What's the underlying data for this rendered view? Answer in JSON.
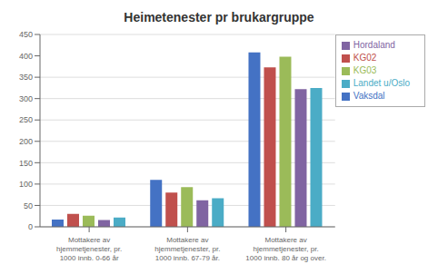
{
  "chart_data": {
    "type": "bar",
    "title": "Heimetenester pr brukargruppe",
    "categories": [
      "Mottakere av\nhjemmetjenester, pr.\n1000 innb. 0-66 år",
      "Mottakere av\nhjemmetjenester, pr.\n1000 innb. 67-79 år.",
      "Mottakere av\nhjemmetjenester, pr.\n1000 innb. 80 år og over."
    ],
    "series": [
      {
        "name": "Vaksdal",
        "color": "#4472C4",
        "values": [
          17,
          110,
          408
        ]
      },
      {
        "name": "KG02",
        "color": "#C0504D",
        "values": [
          30,
          80,
          373
        ]
      },
      {
        "name": "KG03",
        "color": "#9BBB59",
        "values": [
          26,
          93,
          398
        ]
      },
      {
        "name": "Hordaland",
        "color": "#8064A2",
        "values": [
          16,
          62,
          322
        ]
      },
      {
        "name": "Landet u/Oslo",
        "color": "#4BACC6",
        "values": [
          22,
          67,
          325
        ]
      }
    ],
    "ylim": [
      0,
      450
    ],
    "yticks": [
      0,
      50,
      100,
      150,
      200,
      250,
      300,
      350,
      400,
      450
    ],
    "grid": true,
    "legend": "right"
  }
}
